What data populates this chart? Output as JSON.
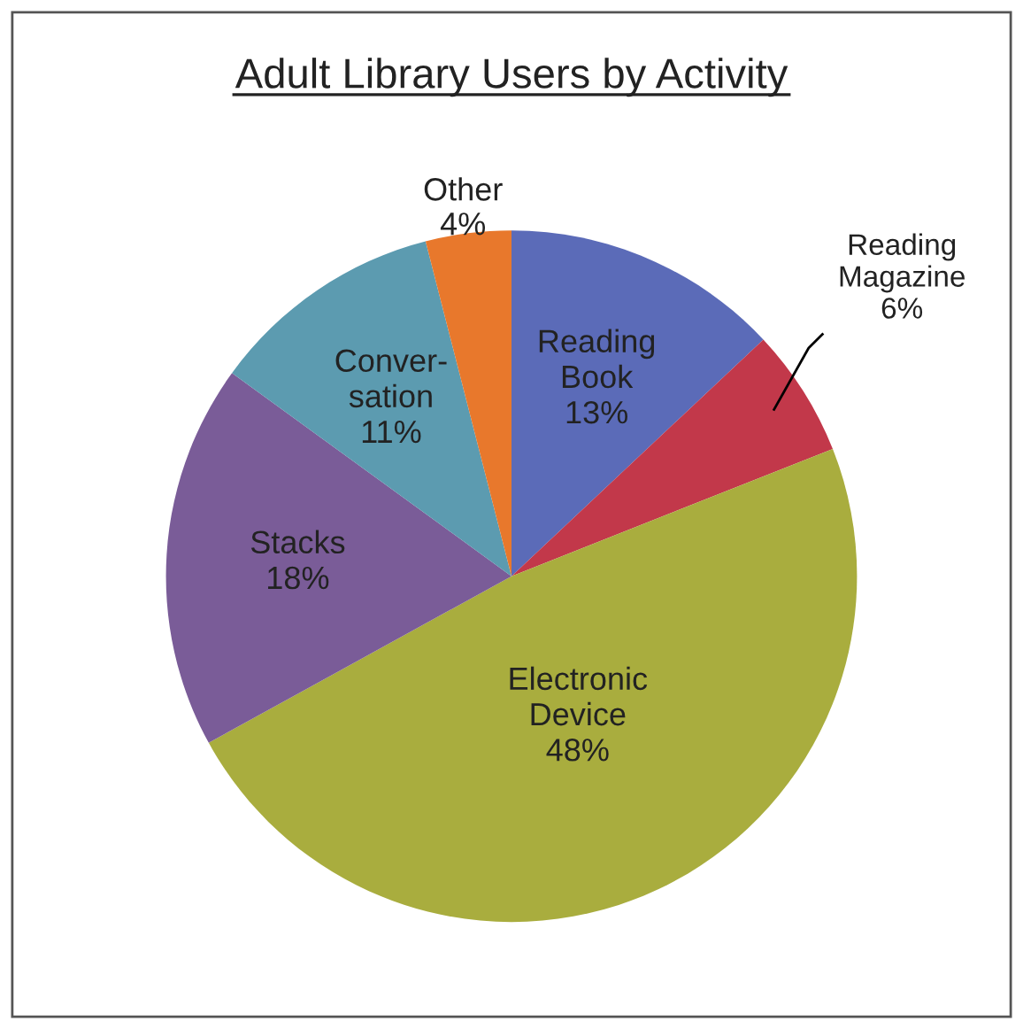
{
  "chart_data": {
    "type": "pie",
    "title": "Adult Library Users by Activity",
    "categories": [
      "Reading\nBook",
      "Reading\nMagazine",
      "Electronic\nDevice",
      "Stacks",
      "Conver-\nsation",
      "Other"
    ],
    "values": [
      13,
      6,
      48,
      18,
      11,
      4
    ],
    "colors": [
      "#5b6bb8",
      "#c2384a",
      "#a9ad3e",
      "#7a5c98",
      "#5c9bb0",
      "#e8782c"
    ],
    "value_labels": [
      "13%",
      "6%",
      "48%",
      "18%",
      "11%",
      "4%"
    ]
  }
}
